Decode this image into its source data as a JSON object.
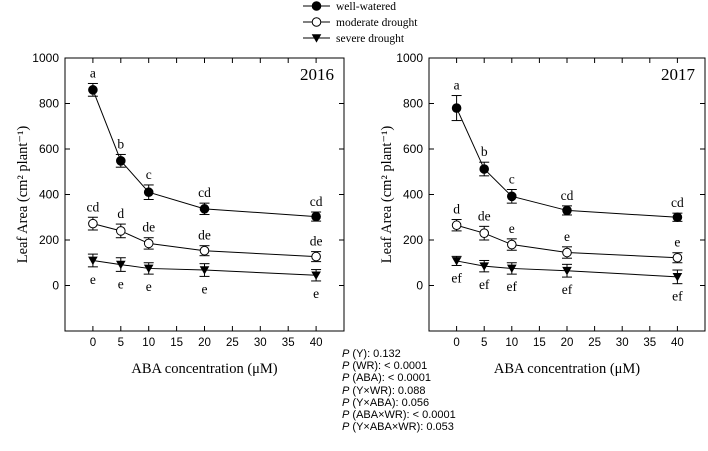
{
  "legend": [
    {
      "label": "well-watered",
      "marker": "filled-circle"
    },
    {
      "label": "moderate drought",
      "marker": "open-circle"
    },
    {
      "label": "severe drought",
      "marker": "filled-triangle-down"
    }
  ],
  "stats": [
    {
      "p": "P",
      "term": " (Y): 0.132"
    },
    {
      "p": "P",
      "term": " (WR): < 0.0001"
    },
    {
      "p": "P",
      "term": " (ABA): < 0.0001"
    },
    {
      "p": "P",
      "term": " (Y×WR): 0.088"
    },
    {
      "p": "P",
      "term": " (Y×ABA): 0.056"
    },
    {
      "p": "P",
      "term": " (ABA×WR): < 0.0001"
    },
    {
      "p": "P",
      "term": " (Y×ABA×WR): 0.053"
    }
  ],
  "chart_data": [
    {
      "type": "line",
      "title": "2016",
      "xlabel": "ABA concentration (μM)",
      "ylabel": "Leaf Area (cm² plant⁻¹)",
      "xlim": [
        -5,
        45
      ],
      "ylim": [
        -200,
        1000
      ],
      "xticks": [
        0,
        5,
        10,
        15,
        20,
        25,
        30,
        35,
        40
      ],
      "yticks": [
        0,
        200,
        400,
        600,
        800,
        1000
      ],
      "x": [
        0,
        5,
        10,
        20,
        40
      ],
      "series": [
        {
          "name": "well-watered",
          "values": [
            860,
            548,
            410,
            337,
            303
          ],
          "errors": [
            28,
            28,
            32,
            25,
            20
          ],
          "letters": [
            "a",
            "b",
            "c",
            "cd",
            "cd"
          ]
        },
        {
          "name": "moderate drought",
          "values": [
            272,
            240,
            185,
            153,
            127
          ],
          "errors": [
            28,
            30,
            25,
            22,
            22
          ],
          "letters": [
            "cd",
            "d",
            "de",
            "de",
            "de"
          ]
        },
        {
          "name": "severe drought",
          "values": [
            110,
            92,
            75,
            68,
            45
          ],
          "errors": [
            28,
            30,
            25,
            28,
            25
          ],
          "letters": [
            "e",
            "e",
            "e",
            "e",
            "e"
          ]
        }
      ]
    },
    {
      "type": "line",
      "title": "2017",
      "xlabel": "ABA concentration (μM)",
      "ylabel": "Leaf Area (cm² plant⁻¹)",
      "xlim": [
        -5,
        45
      ],
      "ylim": [
        -200,
        1000
      ],
      "xticks": [
        0,
        5,
        10,
        15,
        20,
        25,
        30,
        35,
        40
      ],
      "yticks": [
        0,
        200,
        400,
        600,
        800,
        1000
      ],
      "x": [
        0,
        5,
        10,
        20,
        40
      ],
      "series": [
        {
          "name": "well-watered",
          "values": [
            780,
            512,
            392,
            330,
            300
          ],
          "errors": [
            55,
            30,
            30,
            20,
            18
          ],
          "letters": [
            "a",
            "b",
            "c",
            "cd",
            "cd"
          ]
        },
        {
          "name": "moderate drought",
          "values": [
            265,
            230,
            180,
            145,
            122
          ],
          "errors": [
            25,
            30,
            25,
            25,
            22
          ],
          "letters": [
            "d",
            "de",
            "e",
            "e",
            "e"
          ]
        },
        {
          "name": "severe drought",
          "values": [
            108,
            85,
            75,
            65,
            38
          ],
          "errors": [
            20,
            25,
            25,
            28,
            30
          ],
          "letters": [
            "ef",
            "ef",
            "ef",
            "ef",
            "ef"
          ]
        }
      ]
    }
  ]
}
